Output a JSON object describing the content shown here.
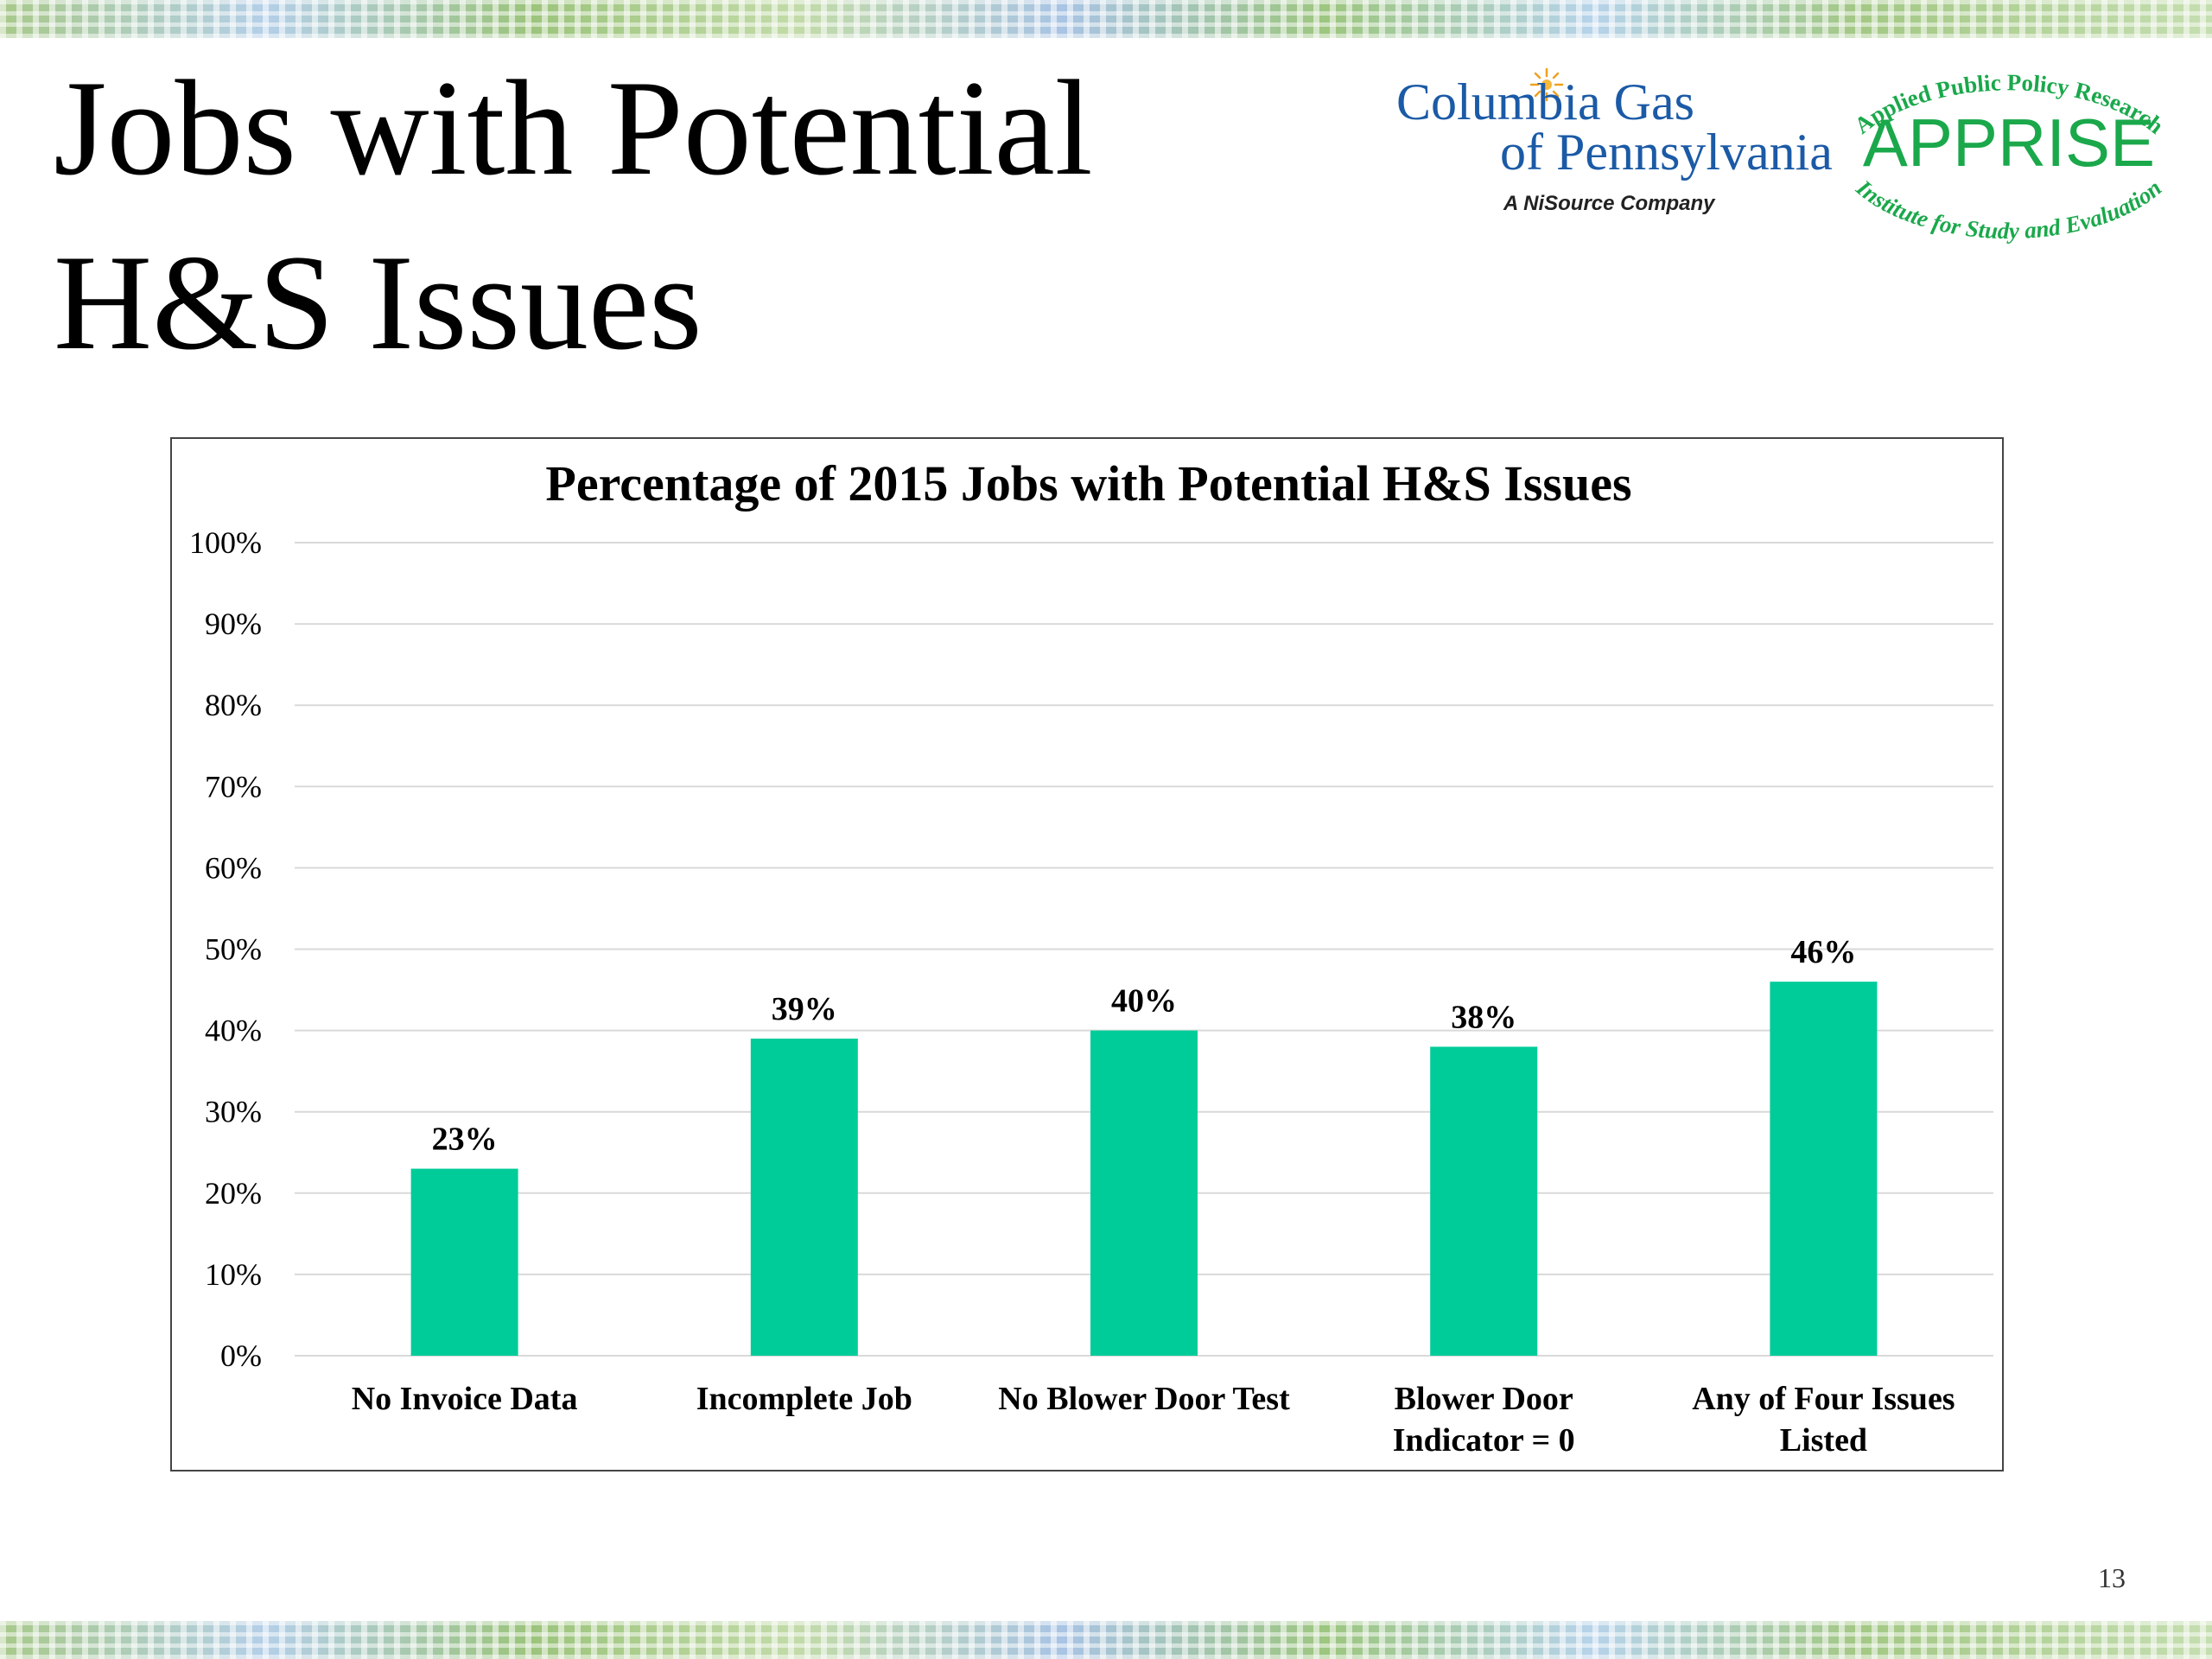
{
  "slide": {
    "title_line1": "Jobs with Potential",
    "title_line2": "H&S Issues",
    "page_number": "13"
  },
  "logos": {
    "columbia_line1": "Columbia Gas",
    "columbia_line2": "of Pennsylvania",
    "columbia_sub": "A NiSource Company",
    "apprise_top": "Applied Public Policy Research",
    "apprise_main": "APPRISE",
    "apprise_bottom": "Institute for Study and Evaluation"
  },
  "colors": {
    "bar": "#00cc99",
    "columbia_blue": "#1b5aa6",
    "apprise_green": "#1aa84b"
  },
  "chart_data": {
    "type": "bar",
    "title": "Percentage of 2015 Jobs with Potential H&S Issues",
    "categories": [
      [
        "No Invoice Data"
      ],
      [
        "Incomplete Job"
      ],
      [
        "No Blower Door Test"
      ],
      [
        "Blower Door",
        "Indicator = 0"
      ],
      [
        "Any of Four Issues",
        "Listed"
      ]
    ],
    "values": [
      23,
      39,
      40,
      38,
      46
    ],
    "data_labels": [
      "23%",
      "39%",
      "40%",
      "38%",
      "46%"
    ],
    "y_ticks": [
      "0%",
      "10%",
      "20%",
      "30%",
      "40%",
      "50%",
      "60%",
      "70%",
      "80%",
      "90%",
      "100%"
    ],
    "ylim": [
      0,
      100
    ],
    "grid": true,
    "legend": "none"
  }
}
